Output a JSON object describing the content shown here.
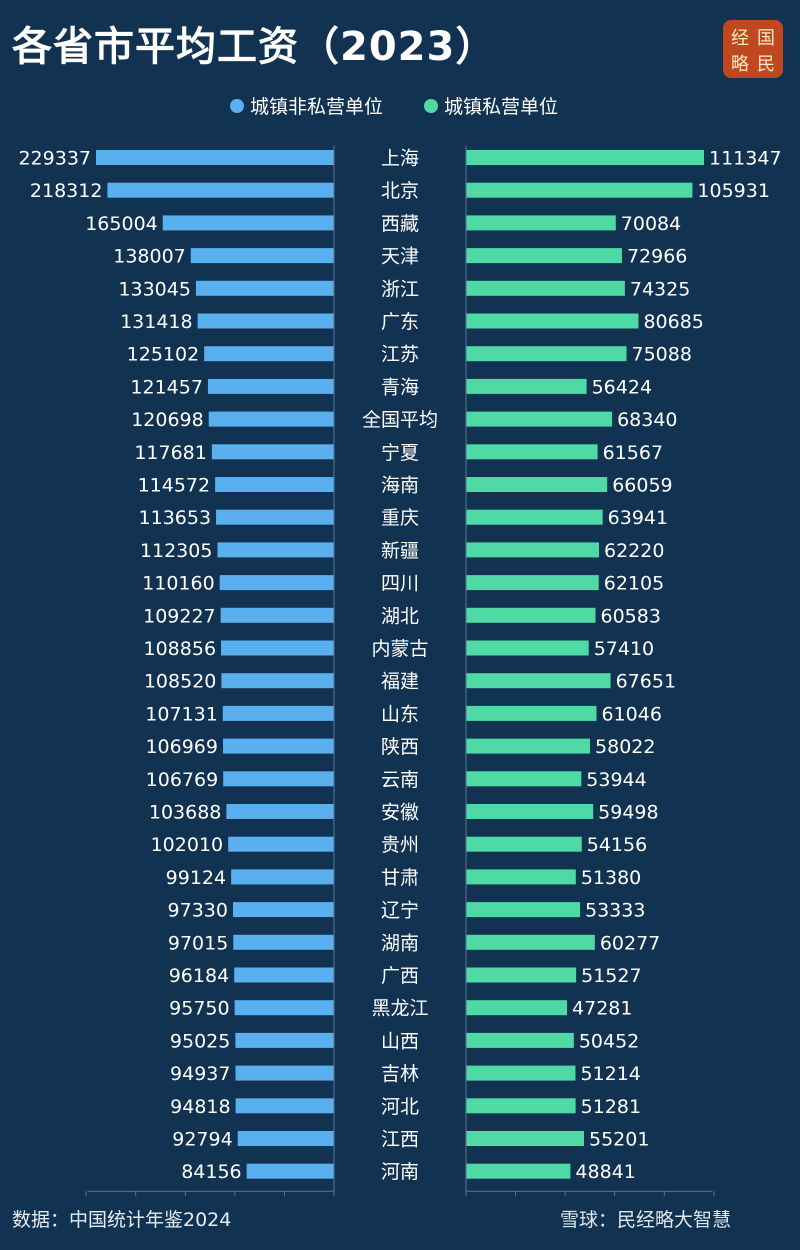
{
  "header": {
    "title": "各省市平均工资（2023）",
    "logo_chars": [
      "经",
      "国",
      "略",
      "民"
    ]
  },
  "legend": {
    "items": [
      {
        "label": "城镇非私营单位",
        "color": "#5aafee"
      },
      {
        "label": "城镇私营单位",
        "color": "#4fd9a4"
      }
    ]
  },
  "footer": {
    "source": "数据：中国统计年鉴2024",
    "watermark": "雪球：民经略大智慧"
  },
  "chart_data": {
    "type": "bar",
    "orientation": "horizontal-butterfly",
    "title": "各省市平均工资（2023）",
    "categories": [
      "上海",
      "北京",
      "西藏",
      "天津",
      "浙江",
      "广东",
      "江苏",
      "青海",
      "全国平均",
      "宁夏",
      "海南",
      "重庆",
      "新疆",
      "四川",
      "湖北",
      "内蒙古",
      "福建",
      "山东",
      "陕西",
      "云南",
      "安徽",
      "贵州",
      "甘肃",
      "辽宁",
      "湖南",
      "广西",
      "黑龙江",
      "山西",
      "吉林",
      "河北",
      "江西",
      "河南"
    ],
    "series": [
      {
        "name": "城镇非私营单位",
        "color": "#5aafee",
        "values": [
          229337,
          218312,
          165004,
          138007,
          133045,
          131418,
          125102,
          121457,
          120698,
          117681,
          114572,
          113653,
          112305,
          110160,
          109227,
          108856,
          108520,
          107131,
          106969,
          106769,
          103688,
          102010,
          99124,
          97330,
          97015,
          96184,
          95750,
          95025,
          94937,
          94818,
          92794,
          84156
        ]
      },
      {
        "name": "城镇私营单位",
        "color": "#4fd9a4",
        "values": [
          111347,
          105931,
          70084,
          72966,
          74325,
          80685,
          75088,
          56424,
          68340,
          61567,
          66059,
          63941,
          62220,
          62105,
          60583,
          57410,
          67651,
          61046,
          58022,
          53944,
          59498,
          54156,
          51380,
          53333,
          60277,
          51527,
          47281,
          50452,
          51214,
          51281,
          55201,
          48841
        ]
      }
    ],
    "xlim_left": [
      0,
      229337
    ],
    "xlim_right": [
      0,
      111347
    ],
    "legend_position": "top-center",
    "grid": false
  }
}
